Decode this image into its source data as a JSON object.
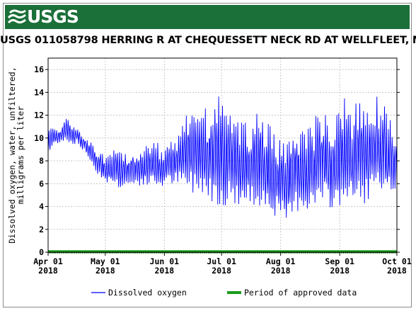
{
  "header": {
    "logo_text": "USGS",
    "logo_icon": "usgs-wave-icon",
    "brand_color": "#1b6f39"
  },
  "chart_data": {
    "type": "line",
    "title": "USGS 011058798 HERRING R AT CHEQUESSETT NECK RD AT WELLFLEET, MA",
    "ylabel_lines": [
      "Dissolved oxygen, water, unfiltered,",
      "milligrams per liter"
    ],
    "xlabel": "",
    "ylim": [
      0,
      17
    ],
    "yticks": [
      0,
      2,
      4,
      6,
      8,
      10,
      12,
      14,
      16
    ],
    "xlim": [
      "2018-04-01",
      "2018-10-01"
    ],
    "xticks": [
      {
        "date": "2018-04-01",
        "label": "Apr 01",
        "year": "2018"
      },
      {
        "date": "2018-05-01",
        "label": "May 01",
        "year": "2018"
      },
      {
        "date": "2018-06-01",
        "label": "Jun 01",
        "year": "2018"
      },
      {
        "date": "2018-07-01",
        "label": "Jul 01",
        "year": "2018"
      },
      {
        "date": "2018-08-01",
        "label": "Aug 01",
        "year": "2018"
      },
      {
        "date": "2018-09-01",
        "label": "Sep 01",
        "year": "2018"
      },
      {
        "date": "2018-10-01",
        "label": "Oct 01",
        "year": "2018"
      }
    ],
    "grid": true,
    "legend_position": "bottom",
    "series": [
      {
        "name": "Dissolved oxygen",
        "color": "#0000ff",
        "daily_range_note": "daily min/max envelope estimated from plot",
        "x": [
          "2018-04-01",
          "2018-04-04",
          "2018-04-07",
          "2018-04-10",
          "2018-04-13",
          "2018-04-16",
          "2018-04-19",
          "2018-04-22",
          "2018-04-25",
          "2018-04-28",
          "2018-05-01",
          "2018-05-04",
          "2018-05-07",
          "2018-05-10",
          "2018-05-13",
          "2018-05-16",
          "2018-05-19",
          "2018-05-22",
          "2018-05-25",
          "2018-05-28",
          "2018-05-31",
          "2018-06-03",
          "2018-06-06",
          "2018-06-09",
          "2018-06-12",
          "2018-06-15",
          "2018-06-18",
          "2018-06-21",
          "2018-06-24",
          "2018-06-27",
          "2018-06-30",
          "2018-07-03",
          "2018-07-06",
          "2018-07-09",
          "2018-07-12",
          "2018-07-15",
          "2018-07-18",
          "2018-07-21",
          "2018-07-24",
          "2018-07-27",
          "2018-07-30",
          "2018-08-02",
          "2018-08-05",
          "2018-08-08",
          "2018-08-11",
          "2018-08-14",
          "2018-08-17",
          "2018-08-20",
          "2018-08-23",
          "2018-08-26",
          "2018-08-29",
          "2018-09-01",
          "2018-09-04",
          "2018-09-07",
          "2018-09-10",
          "2018-09-13",
          "2018-09-16",
          "2018-09-19",
          "2018-09-22",
          "2018-09-25",
          "2018-09-28",
          "2018-10-01"
        ],
        "min": [
          8.3,
          9.2,
          9.5,
          9.6,
          9.3,
          9.4,
          8.8,
          8.2,
          7.2,
          6.5,
          6.0,
          5.8,
          5.5,
          5.3,
          5.5,
          5.4,
          5.6,
          5.5,
          5.6,
          5.4,
          5.5,
          5.6,
          5.7,
          5.5,
          5.0,
          4.8,
          4.5,
          4.8,
          4.2,
          3.8,
          3.5,
          3.4,
          3.5,
          3.6,
          3.5,
          3.4,
          3.3,
          3.6,
          3.5,
          3.0,
          2.6,
          2.0,
          1.5,
          2.6,
          3.3,
          3.4,
          3.0,
          3.5,
          3.3,
          3.3,
          3.2,
          3.3,
          4.0,
          3.4,
          3.6,
          3.7,
          3.8,
          4.2,
          4.0,
          3.6,
          4.6,
          5.0
        ],
        "max": [
          10.8,
          11.2,
          11.0,
          12.0,
          11.5,
          11.2,
          10.6,
          10.0,
          9.4,
          9.0,
          8.6,
          8.9,
          9.3,
          8.8,
          9.0,
          9.5,
          9.4,
          9.5,
          9.8,
          10.0,
          9.4,
          9.8,
          10.2,
          10.8,
          12.5,
          13.0,
          13.6,
          13.8,
          12.8,
          14.0,
          14.8,
          12.5,
          14.0,
          12.6,
          11.6,
          12.0,
          12.6,
          13.2,
          12.0,
          11.4,
          10.6,
          10.6,
          11.0,
          12.4,
          12.0,
          11.4,
          11.6,
          12.8,
          13.4,
          12.2,
          12.3,
          13.6,
          14.6,
          13.0,
          14.4,
          13.4,
          13.8,
          14.8,
          14.2,
          13.2,
          12.0,
          10.8
        ]
      },
      {
        "name": "Period of approved data",
        "color": "#1a9c1a",
        "value": 0.05
      }
    ]
  }
}
